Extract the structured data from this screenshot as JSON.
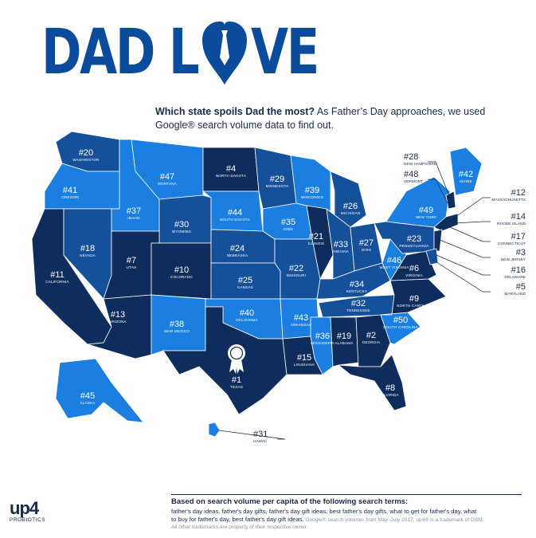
{
  "title_part1": "DAD L",
  "title_part2": "VE",
  "intro": {
    "question": "Which state spoils Dad the most?",
    "line_rest": " As Father’s Day approaches, we used",
    "line2": "Google® search volume data to find out."
  },
  "colors": {
    "light": "#1a7fe0",
    "mid": "#15509b",
    "dark": "#0f2d5c",
    "title": "#0a4c9b"
  },
  "states": [
    {
      "rank": "#20",
      "name": "WASHINGTON",
      "shade": "mid"
    },
    {
      "rank": "#41",
      "name": "OREGON",
      "shade": "light"
    },
    {
      "rank": "#11",
      "name": "CALIFORNIA",
      "shade": "dark"
    },
    {
      "rank": "#18",
      "name": "NEVADA",
      "shade": "mid"
    },
    {
      "rank": "#37",
      "name": "IDAHO",
      "shade": "light"
    },
    {
      "rank": "#47",
      "name": "MONTANA",
      "shade": "light"
    },
    {
      "rank": "#30",
      "name": "WYOMING",
      "shade": "mid"
    },
    {
      "rank": "#7",
      "name": "UTAH",
      "shade": "dark"
    },
    {
      "rank": "#13",
      "name": "ARIZONA",
      "shade": "dark"
    },
    {
      "rank": "#10",
      "name": "COLORADO",
      "shade": "dark"
    },
    {
      "rank": "#38",
      "name": "NEW MEXICO",
      "shade": "light"
    },
    {
      "rank": "#4",
      "name": "NORTH DAKOTA",
      "shade": "dark"
    },
    {
      "rank": "#44",
      "name": "SOUTH DAKOTA",
      "shade": "light"
    },
    {
      "rank": "#24",
      "name": "NEBRASKA",
      "shade": "mid"
    },
    {
      "rank": "#25",
      "name": "KANSAS",
      "shade": "mid"
    },
    {
      "rank": "#40",
      "name": "OKLAHOMA",
      "shade": "light"
    },
    {
      "rank": "#1",
      "name": "TEXAS",
      "shade": "dark"
    },
    {
      "rank": "#29",
      "name": "MINNESOTA",
      "shade": "mid"
    },
    {
      "rank": "#35",
      "name": "IOWA",
      "shade": "light"
    },
    {
      "rank": "#22",
      "name": "MISSOURI",
      "shade": "mid"
    },
    {
      "rank": "#43",
      "name": "ARKANSAS",
      "shade": "light"
    },
    {
      "rank": "#15",
      "name": "LOUISIANA",
      "shade": "dark"
    },
    {
      "rank": "#39",
      "name": "WISCONSIN",
      "shade": "light"
    },
    {
      "rank": "#21",
      "name": "ILLINOIS",
      "shade": "dark"
    },
    {
      "rank": "#26",
      "name": "MICHIGAN",
      "shade": "mid"
    },
    {
      "rank": "#33",
      "name": "INDIANA",
      "shade": "mid"
    },
    {
      "rank": "#27",
      "name": "OHIO",
      "shade": "mid"
    },
    {
      "rank": "#34",
      "name": "KENTUCKY",
      "shade": "mid"
    },
    {
      "rank": "#32",
      "name": "TENNESSEE",
      "shade": "mid"
    },
    {
      "rank": "#36",
      "name": "MISSISSIPPI",
      "shade": "light"
    },
    {
      "rank": "#19",
      "name": "ALABAMA",
      "shade": "dark"
    },
    {
      "rank": "#2",
      "name": "GEORGIA",
      "shade": "dark"
    },
    {
      "rank": "#8",
      "name": "FLORIDA",
      "shade": "dark"
    },
    {
      "rank": "#50",
      "name": "SOUTH CAROLINA",
      "shade": "light"
    },
    {
      "rank": "#9",
      "name": "NORTH CAROLINA",
      "shade": "dark"
    },
    {
      "rank": "#6",
      "name": "VIRGINIA",
      "shade": "dark"
    },
    {
      "rank": "#46",
      "name": "WEST VIRGINIA",
      "shade": "light"
    },
    {
      "rank": "#23",
      "name": "PENNSYLVANIA",
      "shade": "mid"
    },
    {
      "rank": "#49",
      "name": "NEW YORK",
      "shade": "light"
    },
    {
      "rank": "#42",
      "name": "MAINE",
      "shade": "light"
    },
    {
      "rank": "#45",
      "name": "ALASKA",
      "shade": "light"
    }
  ],
  "callouts": [
    {
      "rank": "#28",
      "name": "NEW HAMPSHIRE"
    },
    {
      "rank": "#48",
      "name": "VERMONT"
    },
    {
      "rank": "#12",
      "name": "MASSACHUSETTS"
    },
    {
      "rank": "#14",
      "name": "RHODE ISLAND"
    },
    {
      "rank": "#17",
      "name": "CONNECTICUT"
    },
    {
      "rank": "#3",
      "name": "NEW JERSEY"
    },
    {
      "rank": "#16",
      "name": "DELAWARE"
    },
    {
      "rank": "#5",
      "name": "MARYLAND"
    },
    {
      "rank": "#31",
      "name": "HAWAII"
    }
  ],
  "footer": {
    "heading": "Based on search volume per capita of the following search terms:",
    "terms_line1": "father's day ideas, father's day gifts, father's day gift ideas, best father's day gifts, what to get for father's day, what",
    "terms_line2": "to buy for father's day, best father's day gift ideas.",
    "source_line1": " Google® search volumes from May–July 2017. up4® is a trademark of DSM.",
    "source_line2": "All other trademarks are property of their respective owner."
  },
  "logo": {
    "main": "up4",
    "sub": "PROBIOTICS"
  }
}
